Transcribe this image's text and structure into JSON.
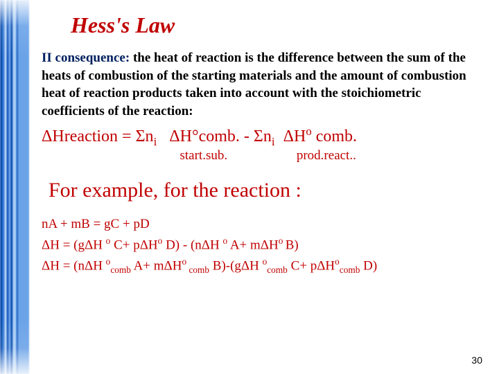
{
  "colors": {
    "title": "#c00000",
    "lead": "#002060",
    "body": "#000000",
    "formula": "#c00000",
    "example_heading": "#c00000",
    "equations": "#c00000",
    "page_num": "#000000"
  },
  "title": "Hess's Law",
  "lead": "II consequence: ",
  "body": "the heat of reaction is the difference between the sum of the heats of combustion of the starting materials and the amount of combustion heat of reaction products taken into account with the stoichiometric coefficients of the reaction:",
  "formula": {
    "line_html": "ΔHreaction = Σn<sub>i</sub>   ΔH°comb. - Σn<sub>i</sub>  ΔH<sup>o</sup> comb.",
    "labels_html": "                                          start.sub.                     prod.react.."
  },
  "example_heading": "For example, for the reaction :",
  "equations": [
    "nA + mB = gC + pD",
    "ΔH = (gΔH <sup>o</sup> C+ pΔH<sup>o</sup> D) - (nΔH <sup>o</sup> A+ mΔH<sup>o </sup>B)",
    "ΔH = (nΔH <sup>o</sup><sub>comb</sub> A+ mΔH<sup>o</sup><sub> comb</sub> B)-(gΔH <sup>o</sup><sub>comb</sub> C+ pΔH<sup>o</sup><sub>comb</sub> D)"
  ],
  "page_number": "30"
}
